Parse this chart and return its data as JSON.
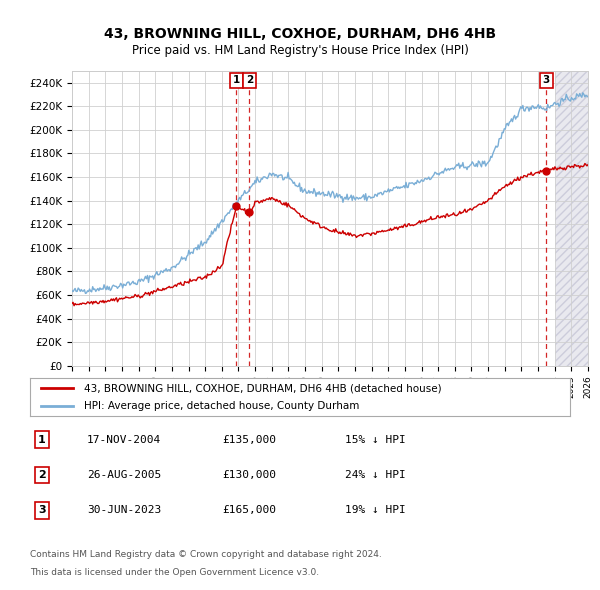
{
  "title": "43, BROWNING HILL, COXHOE, DURHAM, DH6 4HB",
  "subtitle": "Price paid vs. HM Land Registry's House Price Index (HPI)",
  "hpi_color": "#7aaed6",
  "price_color": "#cc0000",
  "annotation_box_color": "#cc0000",
  "legend_label_price": "43, BROWNING HILL, COXHOE, DURHAM, DH6 4HB (detached house)",
  "legend_label_hpi": "HPI: Average price, detached house, County Durham",
  "transactions": [
    {
      "label": "1",
      "date": "17-NOV-2004",
      "price": 135000,
      "pct": "15%",
      "direction": "↓",
      "x_year": 2004.88
    },
    {
      "label": "2",
      "date": "26-AUG-2005",
      "price": 130000,
      "pct": "24%",
      "direction": "↓",
      "x_year": 2005.65
    },
    {
      "label": "3",
      "date": "30-JUN-2023",
      "price": 165000,
      "pct": "19%",
      "direction": "↓",
      "x_year": 2023.5
    }
  ],
  "footer_line1": "Contains HM Land Registry data © Crown copyright and database right 2024.",
  "footer_line2": "This data is licensed under the Open Government Licence v3.0.",
  "xmin": 1995,
  "xmax": 2026,
  "ylim": [
    0,
    250000
  ],
  "yticks": [
    0,
    20000,
    40000,
    60000,
    80000,
    100000,
    120000,
    140000,
    160000,
    180000,
    200000,
    220000,
    240000
  ],
  "ytick_labels": [
    "£0",
    "£20K",
    "£40K",
    "£60K",
    "£80K",
    "£100K",
    "£120K",
    "£140K",
    "£160K",
    "£180K",
    "£200K",
    "£220K",
    "£240K"
  ]
}
